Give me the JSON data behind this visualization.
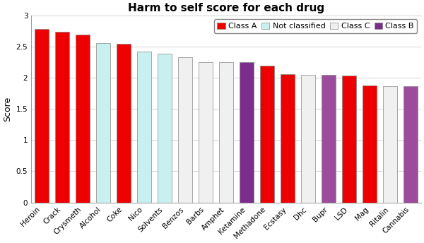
{
  "title": "Harm to self score for each drug",
  "ylabel": "Score",
  "categories": [
    "Heroin",
    "Crack",
    "Crysmeth",
    "Alcohol",
    "Coke",
    "Nico",
    "Solvents",
    "Benzos",
    "Barbs",
    "Amphet",
    "Ketamine",
    "Methadone",
    "Ecstasy",
    "Dhc",
    "Bupr",
    "LSD",
    "Mag",
    "Ritalin",
    "Cannabis"
  ],
  "values": [
    2.78,
    2.74,
    2.69,
    2.56,
    2.54,
    2.42,
    2.38,
    2.33,
    2.25,
    2.25,
    2.25,
    2.19,
    2.06,
    2.04,
    2.04,
    2.03,
    1.88,
    1.87,
    1.86
  ],
  "colors": [
    "#ee0000",
    "#ee0000",
    "#ee0000",
    "#c8f0f0",
    "#ee0000",
    "#c8f0f0",
    "#c8f0f0",
    "#f0f0f0",
    "#f0f0f0",
    "#f0f0f0",
    "#7b2d8b",
    "#ee0000",
    "#ee0000",
    "#f0f0f0",
    "#9b4d9b",
    "#ee0000",
    "#ee0000",
    "#f0f0f0",
    "#9b4d9b"
  ],
  "edgecolors": [
    "#888888",
    "#888888",
    "#888888",
    "#888888",
    "#888888",
    "#888888",
    "#888888",
    "#888888",
    "#888888",
    "#888888",
    "#888888",
    "#888888",
    "#888888",
    "#888888",
    "#888888",
    "#888888",
    "#888888",
    "#888888",
    "#888888"
  ],
  "legend_labels": [
    "Class A",
    "Not classified",
    "Class C",
    "Class B"
  ],
  "legend_colors": [
    "#ee0000",
    "#c8f0f0",
    "#f0f0f0",
    "#7b2d8b"
  ],
  "ylim": [
    0,
    3.0
  ],
  "yticks": [
    0,
    0.5,
    1.0,
    1.5,
    2.0,
    2.5,
    3.0
  ],
  "ytick_labels": [
    "0",
    "0.5",
    "1",
    "1.5",
    "2",
    "2.5",
    "3"
  ],
  "background_color": "#ffffff",
  "grid_color": "#cccccc",
  "title_fontsize": 11,
  "label_fontsize": 9,
  "tick_fontsize": 7.5,
  "legend_fontsize": 8
}
